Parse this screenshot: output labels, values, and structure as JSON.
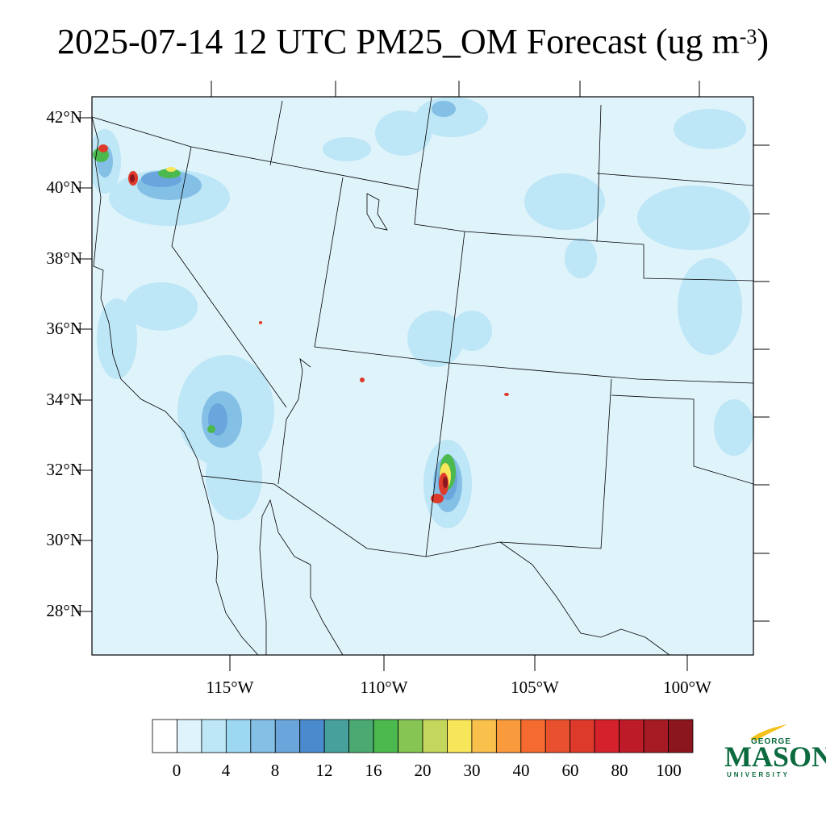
{
  "title": {
    "main": "2025-07-14 12 UTC PM25_OM Forecast (ug m",
    "superscript": "-3",
    "close": ")"
  },
  "latitude_labels": [
    "42°N",
    "40°N",
    "38°N",
    "36°N",
    "34°N",
    "32°N",
    "30°N",
    "28°N"
  ],
  "longitude_labels": [
    "115°W",
    "110°W",
    "105°W",
    "100°W"
  ],
  "colorbar": {
    "labels": [
      "0",
      "4",
      "8",
      "12",
      "16",
      "20",
      "30",
      "40",
      "60",
      "80",
      "100"
    ],
    "colors": [
      "#ffffff",
      "#dff3fb",
      "#bde6f6",
      "#9dd8f3",
      "#84bfe6",
      "#6aa6dc",
      "#4a8bcd",
      "#47a09c",
      "#4aaa72",
      "#4cb94e",
      "#86c454",
      "#c4d75c",
      "#f7e65a",
      "#f9c04c",
      "#f99a3c",
      "#f46a2f",
      "#e8502e",
      "#de3a2b",
      "#d4212b",
      "#bd1b27",
      "#a61a24",
      "#8c161e"
    ]
  },
  "colors": {
    "background_field": "#dff3fb",
    "low_field": "#bde6f6",
    "medium_field": "#9dd8f3",
    "boundary": "#000000"
  },
  "logo": {
    "line1": "GEORGE",
    "line2": "MASON",
    "line3": "UNIVERSITY"
  }
}
